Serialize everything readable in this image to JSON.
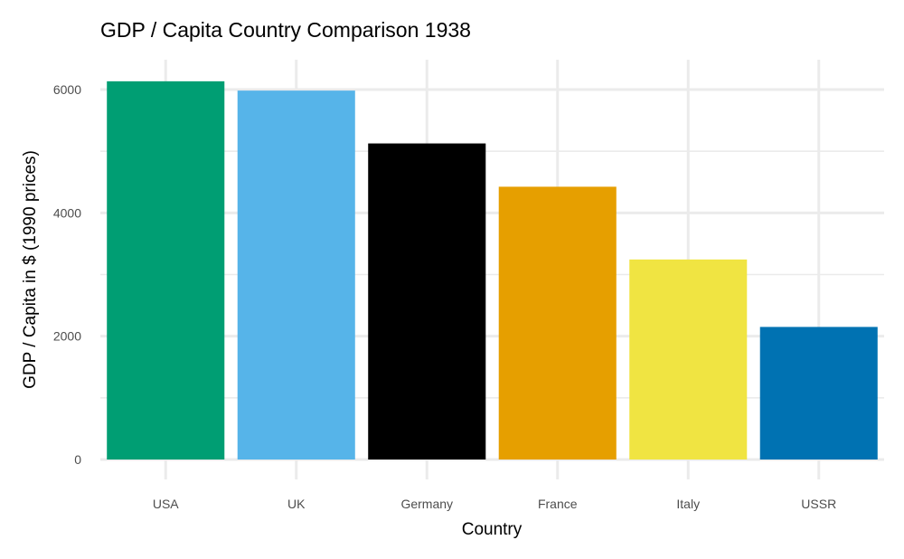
{
  "chart_data": {
    "type": "bar",
    "title": "GDP / Capita Country Comparison 1938",
    "xlabel": "Country",
    "ylabel": "GDP / Capita in $ (1990 prices)",
    "categories": [
      "USA",
      "UK",
      "Germany",
      "France",
      "Italy",
      "USSR"
    ],
    "values": [
      6134,
      5983,
      5126,
      4424,
      3244,
      2150
    ],
    "colors": [
      "#009E73",
      "#56B4E9",
      "#000000",
      "#E69F00",
      "#F0E442",
      "#0072B2"
    ],
    "ylim": [
      0,
      6500
    ],
    "yticks": [
      0,
      2000,
      4000,
      6000
    ],
    "ytick_labels": [
      "0",
      "2000",
      "4000",
      "6000"
    ],
    "grid": true,
    "legend": "none"
  }
}
